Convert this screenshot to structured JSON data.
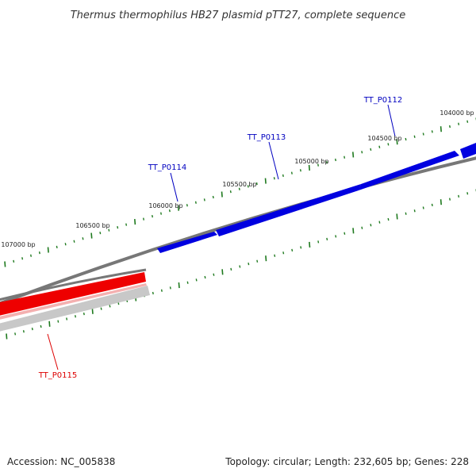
{
  "title": "Thermus thermophilus HB27 plasmid pTT27, complete sequence",
  "footer": {
    "accession": "Accession: NC_005838",
    "summary": "Topology: circular; Length: 232,605 bp; Genes: 228"
  },
  "colors": {
    "forward_gene": "#0000e0",
    "reverse_gene": "#ee0000",
    "backbone": "#808080",
    "ticks": "#1f7a1f",
    "reverse_track": "#c8c8c8"
  },
  "ticks": [
    {
      "label": "104000 bp"
    },
    {
      "label": "104500 bp"
    },
    {
      "label": "105000 bp"
    },
    {
      "label": "105500 bp"
    },
    {
      "label": "106000 bp"
    },
    {
      "label": "106500 bp"
    },
    {
      "label": "107000 bp"
    }
  ],
  "genes": [
    {
      "name": "TT_P0112",
      "strand": "forward"
    },
    {
      "name": "TT_P0113",
      "strand": "forward"
    },
    {
      "name": "TT_P0114",
      "strand": "forward"
    },
    {
      "name": "TT_P0115",
      "strand": "reverse"
    }
  ]
}
